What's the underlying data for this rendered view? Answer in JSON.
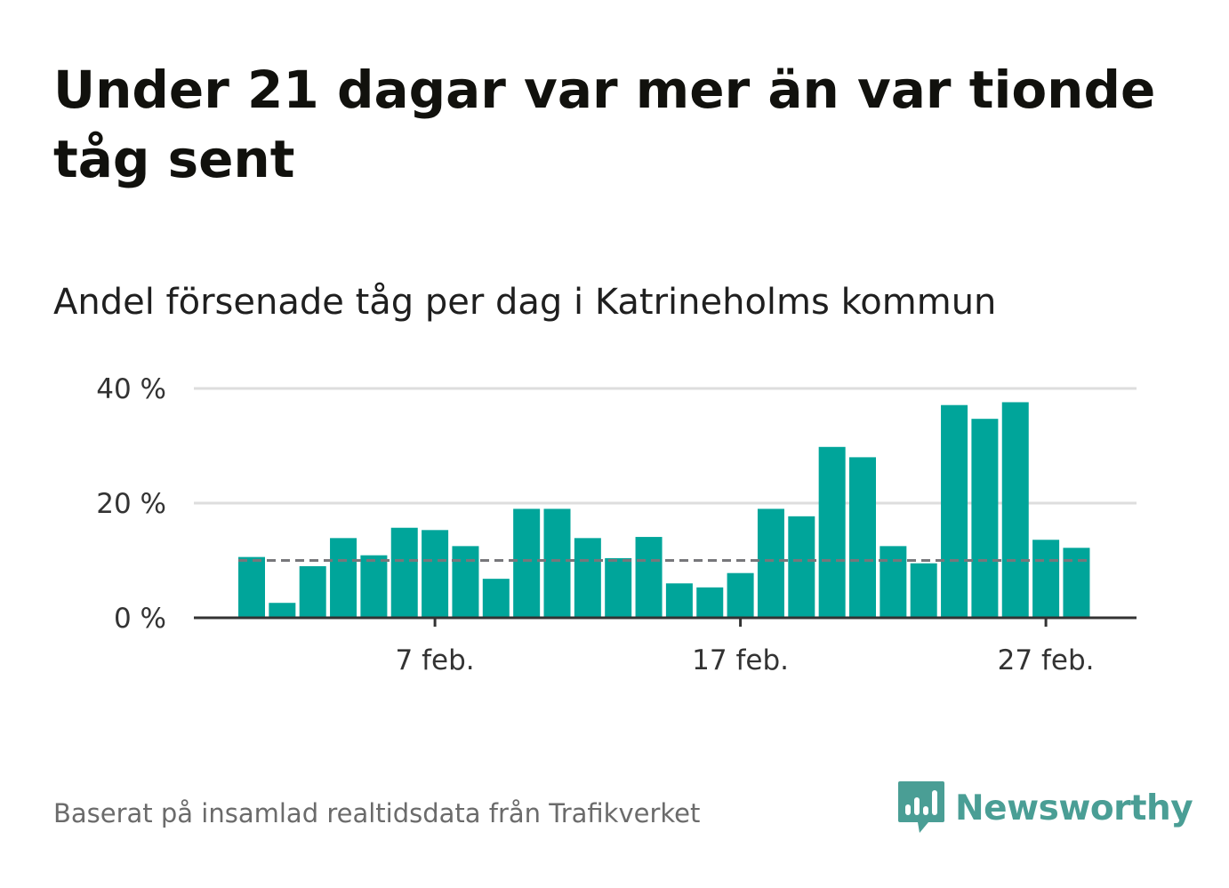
{
  "title": "Under 21 dagar var mer än var tionde tåg sent",
  "subtitle": "Andel försenade tåg per dag i Katrineholms kommun",
  "footer": "Baserat på insamlad realtidsdata från Trafikverket",
  "brand": {
    "name": "Newsworthy",
    "color": "#4a9e95"
  },
  "colors": {
    "bar": "#00a59a",
    "reference_line": "#77777b",
    "grid": "#dddddd",
    "axis": "#333333"
  },
  "chart_data": {
    "type": "bar",
    "title": "",
    "xlabel": "",
    "ylabel": "",
    "categories": [
      "1 feb.",
      "2 feb.",
      "3 feb.",
      "4 feb.",
      "5 feb.",
      "6 feb.",
      "7 feb.",
      "8 feb.",
      "9 feb.",
      "10 feb.",
      "11 feb.",
      "12 feb.",
      "13 feb.",
      "14 feb.",
      "15 feb.",
      "16 feb.",
      "17 feb.",
      "18 feb.",
      "19 feb.",
      "20 feb.",
      "21 feb.",
      "22 feb.",
      "23 feb.",
      "24 feb.",
      "25 feb.",
      "26 feb.",
      "27 feb.",
      "28 feb."
    ],
    "values": [
      10.6,
      2.6,
      9.0,
      13.9,
      10.9,
      15.7,
      15.3,
      12.5,
      6.8,
      19.0,
      19.0,
      13.9,
      10.4,
      14.1,
      6.0,
      5.3,
      7.8,
      19.0,
      17.7,
      29.8,
      28.0,
      12.5,
      9.5,
      37.1,
      34.7,
      37.6,
      13.6,
      12.2
    ],
    "reference_line": 10,
    "ylim": [
      0,
      40
    ],
    "yticks": [
      {
        "value": 0,
        "label": "0 %"
      },
      {
        "value": 20,
        "label": "20 %"
      },
      {
        "value": 40,
        "label": "40 %"
      }
    ],
    "xticks": [
      {
        "index": 6,
        "label": "7 feb."
      },
      {
        "index": 16,
        "label": "17 feb."
      },
      {
        "index": 26,
        "label": "27 feb."
      }
    ],
    "grid": true,
    "legend": "none"
  }
}
